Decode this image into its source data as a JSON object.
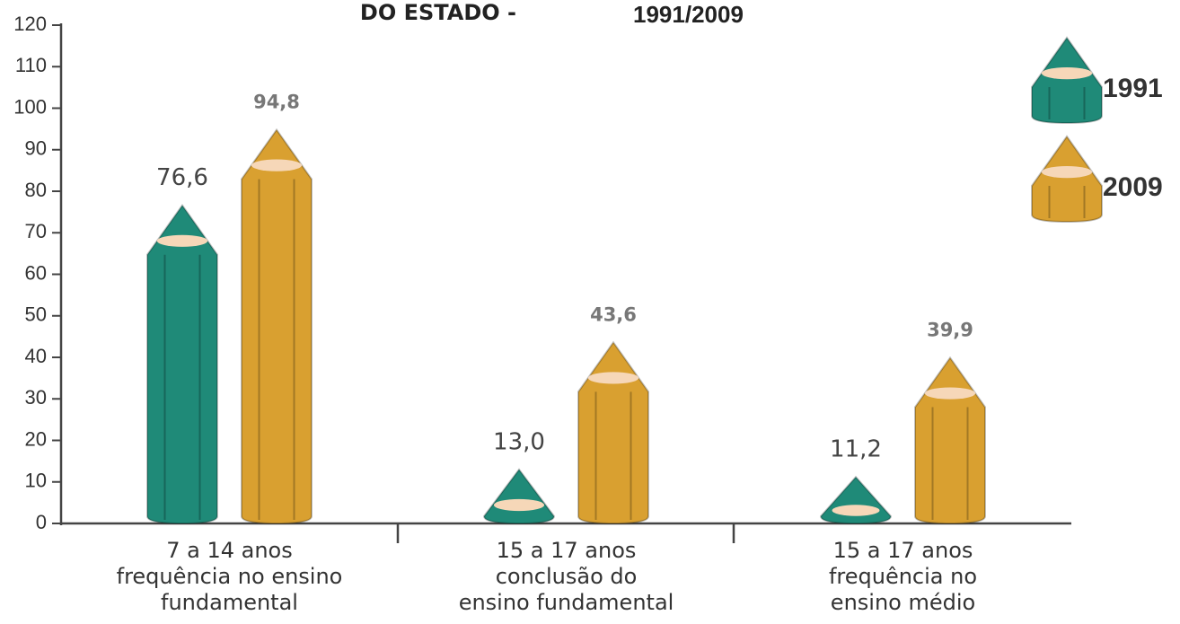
{
  "chart_data": {
    "type": "bar",
    "title": "DO ESTADO -",
    "subtitle": "1991/2009",
    "categories": [
      [
        "7 a 14 anos",
        "frequência no ensino",
        "fundamental"
      ],
      [
        "15 a 17 anos",
        "conclusão do",
        "ensino fundamental"
      ],
      [
        "15 a 17 anos",
        "frequência no",
        "ensino médio"
      ]
    ],
    "series": [
      {
        "name": "1991",
        "color": "#1f8a78",
        "values": [
          76.6,
          13.0,
          11.2
        ],
        "value_labels": [
          "76,6",
          "13,0",
          "11,2"
        ]
      },
      {
        "name": "2009",
        "color": "#d9a030",
        "values": [
          94.8,
          43.6,
          39.9
        ],
        "value_labels": [
          "94,8",
          "43,6",
          "39,9"
        ]
      }
    ],
    "ylim": [
      0,
      120
    ],
    "yticks": [
      0,
      10,
      20,
      30,
      40,
      50,
      60,
      70,
      80,
      90,
      100,
      110,
      120
    ]
  }
}
